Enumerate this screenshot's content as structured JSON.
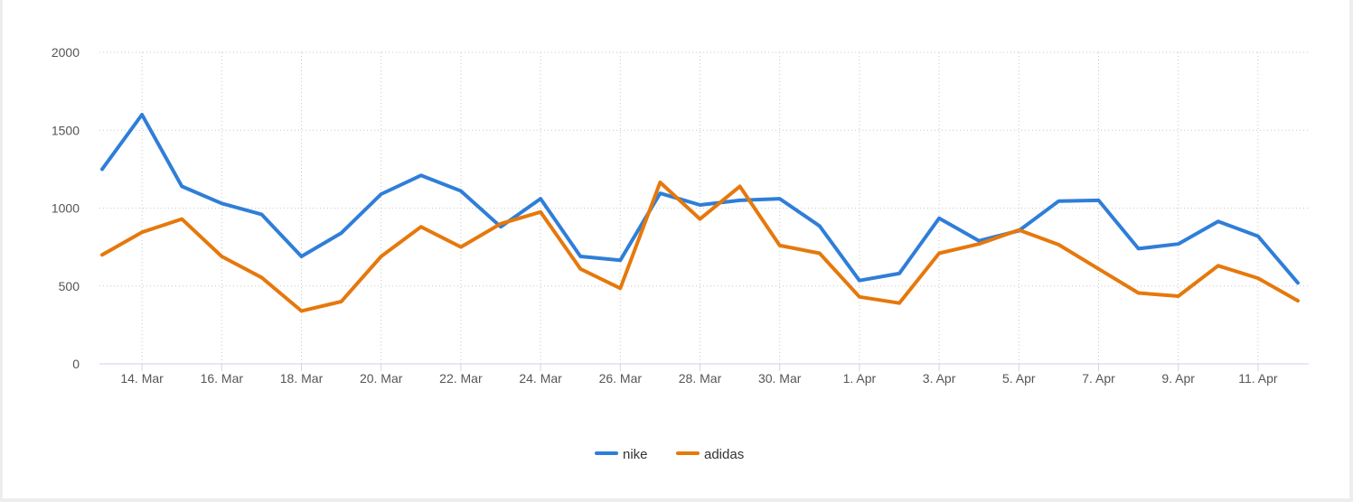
{
  "chart_data": {
    "type": "line",
    "title": "",
    "xlabel": "",
    "ylabel": "",
    "ylim": [
      0,
      2000
    ],
    "yticks": [
      0,
      500,
      1000,
      1500,
      2000
    ],
    "x": [
      "13. Mar",
      "14. Mar",
      "15. Mar",
      "16. Mar",
      "17. Mar",
      "18. Mar",
      "19. Mar",
      "20. Mar",
      "21. Mar",
      "22. Mar",
      "23. Mar",
      "24. Mar",
      "25. Mar",
      "26. Mar",
      "27. Mar",
      "28. Mar",
      "29. Mar",
      "30. Mar",
      "31. Mar",
      "1. Apr",
      "2. Apr",
      "3. Apr",
      "4. Apr",
      "5. Apr",
      "6. Apr",
      "7. Apr",
      "8. Apr",
      "9. Apr",
      "10. Apr",
      "11. Apr",
      "12. Apr"
    ],
    "xtick_labels": [
      "14. Mar",
      "16. Mar",
      "18. Mar",
      "20. Mar",
      "22. Mar",
      "24. Mar",
      "26. Mar",
      "28. Mar",
      "30. Mar",
      "1. Apr",
      "3. Apr",
      "5. Apr",
      "7. Apr",
      "9. Apr",
      "11. Apr"
    ],
    "grid": true,
    "legend_position": "bottom-center",
    "series": [
      {
        "name": "nike",
        "color": "#2f7ed8",
        "values": [
          1250,
          1600,
          1140,
          1030,
          960,
          690,
          840,
          1090,
          1210,
          1110,
          880,
          1060,
          690,
          665,
          1095,
          1020,
          1050,
          1060,
          885,
          535,
          580,
          935,
          790,
          855,
          1045,
          1050,
          740,
          770,
          915,
          820,
          520
        ]
      },
      {
        "name": "adidas",
        "color": "#e6780c",
        "values": [
          700,
          845,
          930,
          690,
          555,
          340,
          400,
          690,
          880,
          750,
          900,
          975,
          610,
          485,
          1165,
          930,
          1140,
          760,
          710,
          430,
          390,
          710,
          770,
          860,
          765,
          610,
          455,
          435,
          630,
          550,
          405
        ]
      }
    ]
  }
}
